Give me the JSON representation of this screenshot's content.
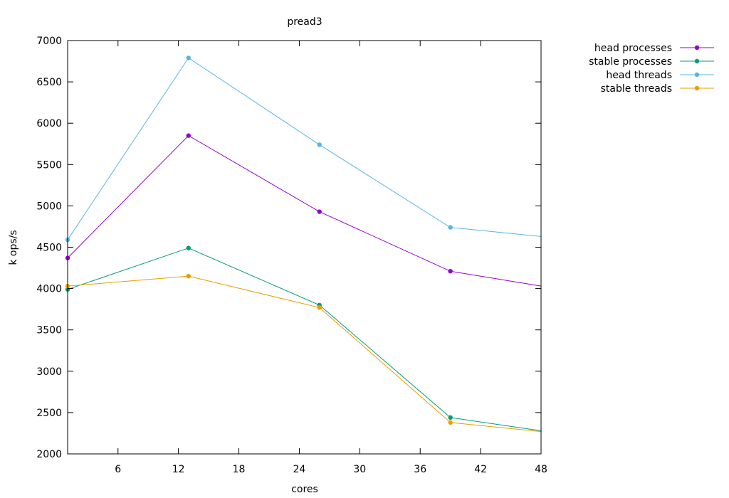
{
  "chart_data": {
    "type": "line",
    "title": "pread3",
    "xlabel": "cores",
    "ylabel": "k ops/s",
    "xlim": [
      1,
      48
    ],
    "ylim": [
      2000,
      7000
    ],
    "xticks": [
      6,
      12,
      18,
      24,
      30,
      36,
      42,
      48
    ],
    "yticks": [
      2000,
      2500,
      3000,
      3500,
      4000,
      4500,
      5000,
      5500,
      6000,
      6500,
      7000
    ],
    "x": [
      1,
      13,
      26,
      39,
      48
    ],
    "grid": false,
    "legend_position": "top-right outside",
    "series": [
      {
        "name": "head processes",
        "color": "#9400d3",
        "values": [
          4370,
          5850,
          4930,
          4210,
          4030
        ]
      },
      {
        "name": "stable processes",
        "color": "#009e73",
        "values": [
          3990,
          4490,
          3800,
          2440,
          2280
        ]
      },
      {
        "name": "head threads",
        "color": "#56b4e9",
        "values": [
          4590,
          6790,
          5740,
          4740,
          4630
        ]
      },
      {
        "name": "stable threads",
        "color": "#e69f00",
        "values": [
          4030,
          4150,
          3770,
          2380,
          2270
        ]
      }
    ]
  }
}
